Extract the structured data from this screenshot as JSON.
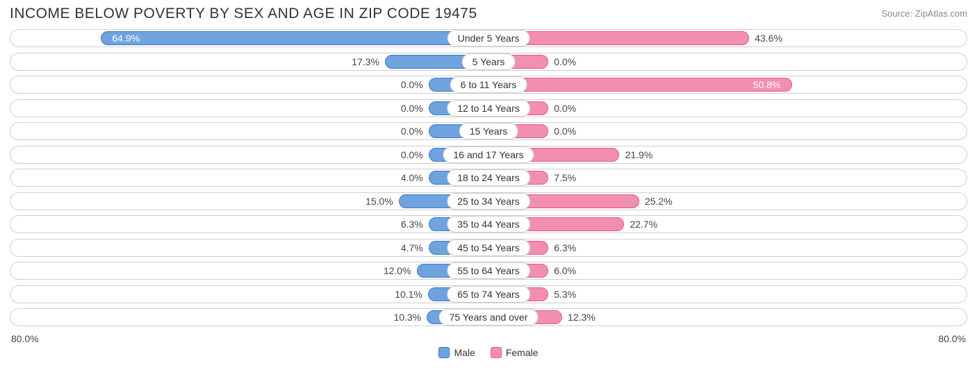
{
  "title": "INCOME BELOW POVERTY BY SEX AND AGE IN ZIP CODE 19475",
  "source": "Source: ZipAtlas.com",
  "axis_max_pct": 80.0,
  "axis_label_left": "80.0%",
  "axis_label_right": "80.0%",
  "min_bar_pct": 10.0,
  "colors": {
    "male_fill": "#6fa3e0",
    "male_stroke": "#3c78c3",
    "female_fill": "#f28fb1",
    "female_stroke": "#e05a8a",
    "track_border": "#cfcfcf",
    "text": "#444444",
    "title_text": "#333333",
    "background": "#ffffff"
  },
  "legend": {
    "male": "Male",
    "female": "Female"
  },
  "rows": [
    {
      "age": "Under 5 Years",
      "male": 64.9,
      "female": 43.6,
      "male_label": "64.9%",
      "female_label": "43.6%"
    },
    {
      "age": "5 Years",
      "male": 17.3,
      "female": 0.0,
      "male_label": "17.3%",
      "female_label": "0.0%"
    },
    {
      "age": "6 to 11 Years",
      "male": 0.0,
      "female": 50.8,
      "male_label": "0.0%",
      "female_label": "50.8%"
    },
    {
      "age": "12 to 14 Years",
      "male": 0.0,
      "female": 0.0,
      "male_label": "0.0%",
      "female_label": "0.0%"
    },
    {
      "age": "15 Years",
      "male": 0.0,
      "female": 0.0,
      "male_label": "0.0%",
      "female_label": "0.0%"
    },
    {
      "age": "16 and 17 Years",
      "male": 0.0,
      "female": 21.9,
      "male_label": "0.0%",
      "female_label": "21.9%"
    },
    {
      "age": "18 to 24 Years",
      "male": 4.0,
      "female": 7.5,
      "male_label": "4.0%",
      "female_label": "7.5%"
    },
    {
      "age": "25 to 34 Years",
      "male": 15.0,
      "female": 25.2,
      "male_label": "15.0%",
      "female_label": "25.2%"
    },
    {
      "age": "35 to 44 Years",
      "male": 6.3,
      "female": 22.7,
      "male_label": "6.3%",
      "female_label": "22.7%"
    },
    {
      "age": "45 to 54 Years",
      "male": 4.7,
      "female": 6.3,
      "male_label": "4.7%",
      "female_label": "6.3%"
    },
    {
      "age": "55 to 64 Years",
      "male": 12.0,
      "female": 6.0,
      "male_label": "12.0%",
      "female_label": "6.0%"
    },
    {
      "age": "65 to 74 Years",
      "male": 10.1,
      "female": 5.3,
      "male_label": "10.1%",
      "female_label": "5.3%"
    },
    {
      "age": "75 Years and over",
      "male": 10.3,
      "female": 12.3,
      "male_label": "10.3%",
      "female_label": "12.3%"
    }
  ]
}
